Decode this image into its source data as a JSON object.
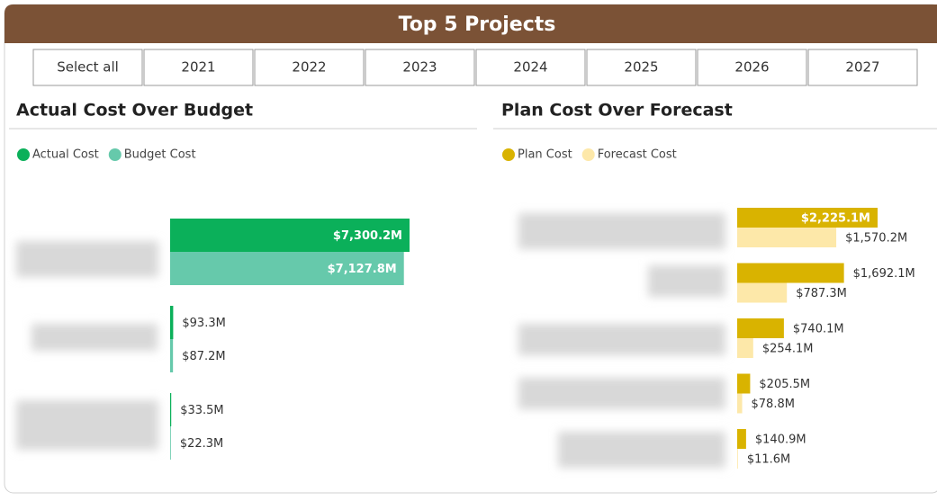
{
  "header": {
    "title": "Top 5 Projects"
  },
  "slicer": {
    "options": [
      "Select all",
      "2021",
      "2022",
      "2023",
      "2024",
      "2025",
      "2026",
      "2027"
    ]
  },
  "chart_data": [
    {
      "type": "bar",
      "orientation": "horizontal",
      "title": "Actual Cost Over Budget",
      "categories": [
        null,
        null,
        null
      ],
      "series": [
        {
          "name": "Actual Cost",
          "color": "#0bb05a",
          "values": [
            7300.2,
            93.3,
            33.5
          ],
          "value_labels": [
            "$7,300.2M",
            "$93.3M",
            "$33.5M"
          ]
        },
        {
          "name": "Budget Cost",
          "color": "#66c9ab",
          "values": [
            7127.8,
            87.2,
            22.3
          ],
          "value_labels": [
            "$7,127.8M",
            "$87.2M",
            "$22.3M"
          ]
        }
      ]
    },
    {
      "type": "bar",
      "orientation": "horizontal",
      "title": "Plan Cost Over Forecast",
      "categories": [
        null,
        null,
        null,
        null,
        null
      ],
      "series": [
        {
          "name": "Plan Cost",
          "color": "#d9b300",
          "values": [
            2225.1,
            1692.1,
            740.1,
            205.5,
            140.9
          ],
          "value_labels": [
            "$2,225.1M",
            "$1,692.1M",
            "$740.1M",
            "$205.5M",
            "$140.9M"
          ]
        },
        {
          "name": "Forecast Cost",
          "color": "#fde8a9",
          "values": [
            1570.2,
            787.3,
            254.1,
            78.8,
            11.6
          ],
          "value_labels": [
            "$1,570.2M",
            "$787.3M",
            "$254.1M",
            "$78.8M",
            "$11.6M"
          ]
        }
      ]
    }
  ]
}
